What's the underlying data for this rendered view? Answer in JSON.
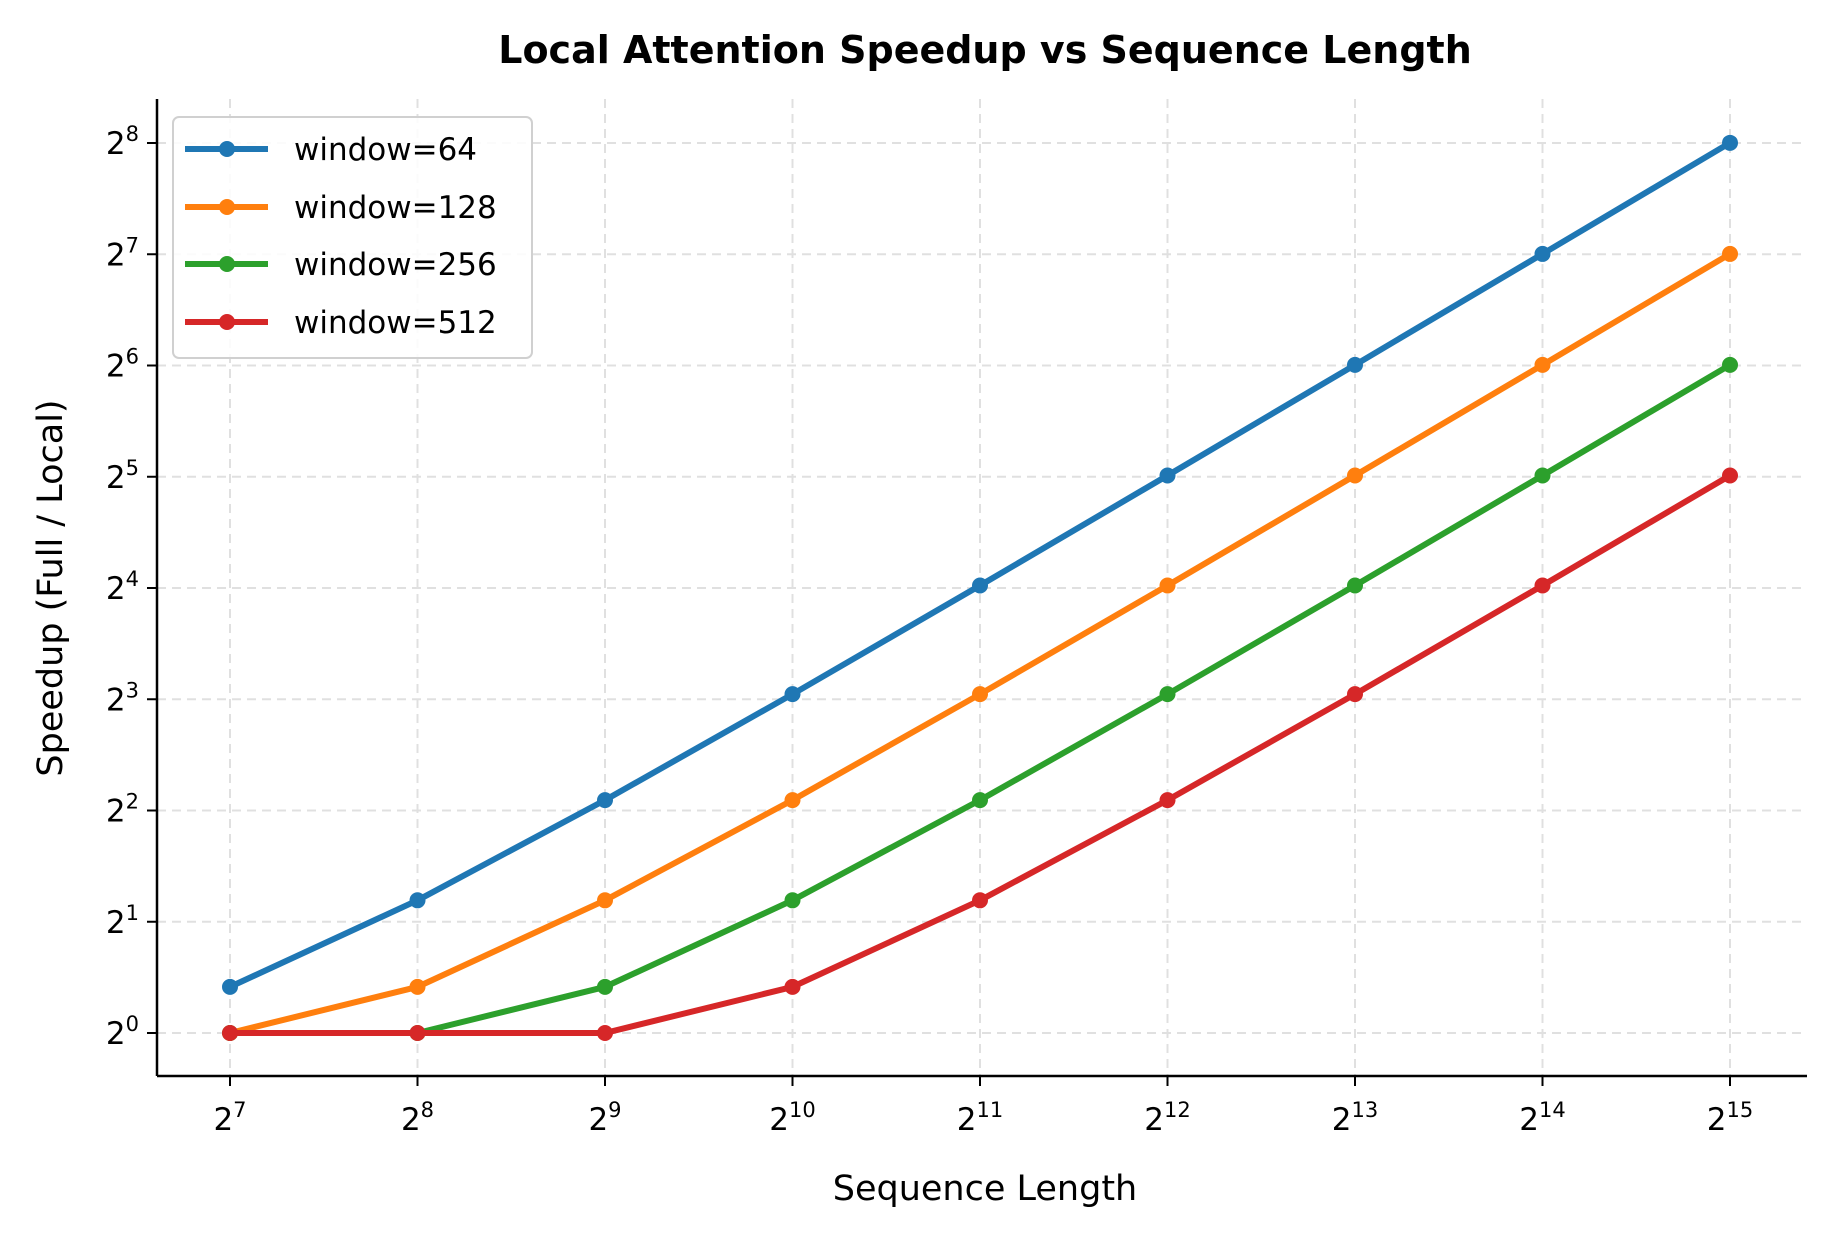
{
  "chart_data": {
    "type": "line",
    "title": "Local Attention Speedup vs Sequence Length",
    "xlabel": "Sequence Length",
    "ylabel": "Speedup (Full / Local)",
    "xscale": "log2",
    "yscale": "log2",
    "x": [
      128,
      256,
      512,
      1024,
      2048,
      4096,
      8192,
      16384,
      32768
    ],
    "x_tick_exponents": [
      7,
      8,
      9,
      10,
      11,
      12,
      13,
      14,
      15
    ],
    "y_tick_exponents": [
      0,
      1,
      2,
      3,
      4,
      5,
      6,
      7,
      8
    ],
    "xlim_log2": [
      6.6,
      15.3
    ],
    "ylim_log2": [
      -0.39,
      8.38
    ],
    "grid": true,
    "legend_position": "upper left",
    "series": [
      {
        "name": "window=64",
        "color": "#1f77b4",
        "values": [
          1.333,
          2.286,
          4.267,
          8.258,
          16.25,
          32.25,
          64.25,
          128.25,
          256.25
        ]
      },
      {
        "name": "window=128",
        "color": "#ff7f0e",
        "values": [
          1.0,
          1.333,
          2.286,
          4.267,
          8.258,
          16.25,
          32.25,
          64.25,
          128.25
        ]
      },
      {
        "name": "window=256",
        "color": "#2ca02c",
        "values": [
          1.0,
          1.0,
          1.333,
          2.286,
          4.267,
          8.258,
          16.25,
          32.25,
          64.25
        ]
      },
      {
        "name": "window=512",
        "color": "#d62728",
        "values": [
          1.0,
          1.0,
          1.0,
          1.333,
          2.286,
          4.267,
          8.258,
          16.25,
          32.25
        ]
      }
    ]
  },
  "colors": {
    "grid": "#e0e0e0",
    "axis": "#000000",
    "legend_border": "#d0d0d0"
  }
}
